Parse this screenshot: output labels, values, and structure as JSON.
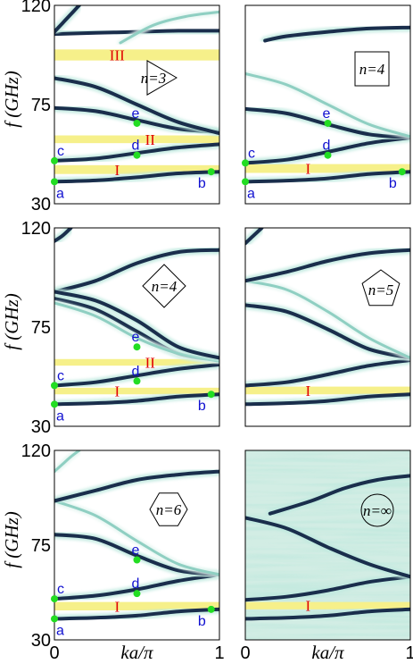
{
  "colors": {
    "band_dark": "#1a2e4c",
    "band_light": "#8fcfc2",
    "band_glow": "#bfe9df",
    "gap_fill": "#f6f08a",
    "gap_label": "#e00000",
    "point_fill": "#22dd22",
    "point_label": "#1010d0",
    "noise_bg": "#d2ede4"
  },
  "axes": {
    "ylabel": "f (GHz)",
    "xlabel": "ka/π",
    "yticks": [
      "30",
      "75",
      "120"
    ],
    "xticks": [
      "0",
      "1"
    ]
  },
  "chart_data": [
    {
      "type": "band-structure",
      "panel": "n=3",
      "shape": "triangle",
      "shape_label": "n=3",
      "xlim": [
        0,
        1
      ],
      "ylim": [
        30,
        120
      ],
      "bands": [
        {
          "tone": "dark",
          "x": [
            0,
            0.25,
            0.5,
            0.75,
            1
          ],
          "y": [
            40,
            40.6,
            42,
            43.8,
            44.5
          ]
        },
        {
          "tone": "dark",
          "x": [
            0,
            0.25,
            0.5,
            0.75,
            1
          ],
          "y": [
            49.5,
            50.5,
            53,
            55.5,
            57
          ]
        },
        {
          "tone": "dark",
          "x": [
            0,
            0.25,
            0.5,
            0.75,
            1
          ],
          "y": [
            73.5,
            72,
            68,
            64,
            62.5
          ]
        },
        {
          "tone": "dark",
          "x": [
            0,
            0.25,
            0.5,
            0.75,
            1
          ],
          "y": [
            87,
            83,
            75,
            67,
            62
          ]
        },
        {
          "tone": "dark",
          "x": [
            0,
            0.25,
            0.5,
            0.75,
            1
          ],
          "y": [
            107,
            107.5,
            108,
            108.5,
            108.5
          ]
        },
        {
          "tone": "dark",
          "x": [
            0,
            0.05,
            0.1,
            0.15
          ],
          "y": [
            108,
            112,
            116,
            120
          ]
        },
        {
          "tone": "light",
          "x": [
            0.4,
            0.6,
            0.8,
            1
          ],
          "y": [
            103,
            111,
            115,
            117
          ]
        }
      ],
      "gaps": [
        {
          "label": "I",
          "range": [
            43.5,
            47.5
          ]
        },
        {
          "label": "II",
          "range": [
            57.5,
            61
          ]
        },
        {
          "label": "III",
          "range": [
            95,
            100
          ]
        }
      ],
      "points": [
        {
          "label": "a",
          "x": 0,
          "y": 40
        },
        {
          "label": "b",
          "x": 0.95,
          "y": 44.5
        },
        {
          "label": "c",
          "x": 0,
          "y": 49.5
        },
        {
          "label": "d",
          "x": 0.5,
          "y": 52
        },
        {
          "label": "e",
          "x": 0.5,
          "y": 66.5
        }
      ]
    },
    {
      "type": "band-structure",
      "panel": "n=4 (square)",
      "shape": "square",
      "shape_label": "n=4",
      "xlim": [
        0,
        1
      ],
      "ylim": [
        30,
        120
      ],
      "bands": [
        {
          "tone": "dark",
          "x": [
            0,
            0.25,
            0.5,
            0.75,
            1
          ],
          "y": [
            40,
            40.5,
            41.5,
            43.5,
            44.5
          ]
        },
        {
          "tone": "dark",
          "x": [
            0,
            0.25,
            0.5,
            0.75,
            1
          ],
          "y": [
            48.5,
            50,
            53.5,
            57.5,
            60
          ]
        },
        {
          "tone": "dark",
          "x": [
            0,
            0.25,
            0.5,
            0.75,
            1
          ],
          "y": [
            73,
            71,
            66,
            61.5,
            60
          ]
        },
        {
          "tone": "light",
          "x": [
            0,
            0.25,
            0.5,
            0.75,
            1
          ],
          "y": [
            89,
            84,
            75,
            66,
            60.5
          ]
        },
        {
          "tone": "dark",
          "x": [
            0.12,
            0.25,
            0.5,
            0.75,
            1
          ],
          "y": [
            104,
            106,
            108,
            109.5,
            110
          ]
        }
      ],
      "gaps": [
        {
          "label": "I",
          "range": [
            44,
            48
          ]
        }
      ],
      "points": [
        {
          "label": "a",
          "x": 0,
          "y": 40
        },
        {
          "label": "b",
          "x": 0.95,
          "y": 44.5
        },
        {
          "label": "c",
          "x": 0,
          "y": 48.5
        },
        {
          "label": "d",
          "x": 0.5,
          "y": 52
        },
        {
          "label": "e",
          "x": 0.5,
          "y": 66.5
        }
      ]
    },
    {
      "type": "band-structure",
      "panel": "n=4 (diamond)",
      "shape": "diamond",
      "shape_label": "n=4",
      "xlim": [
        0,
        1
      ],
      "ylim": [
        30,
        120
      ],
      "bands": [
        {
          "tone": "dark",
          "x": [
            0,
            0.25,
            0.5,
            0.75,
            1
          ],
          "y": [
            40,
            40.5,
            41.5,
            43.5,
            44.5
          ]
        },
        {
          "tone": "dark",
          "x": [
            0,
            0.25,
            0.5,
            0.75,
            1
          ],
          "y": [
            48.5,
            50,
            53,
            56,
            58
          ]
        },
        {
          "tone": "dark",
          "x": [
            0,
            0.25,
            0.5,
            0.75,
            1
          ],
          "y": [
            88,
            83,
            73,
            63,
            60
          ]
        },
        {
          "tone": "light",
          "x": [
            0,
            0.25,
            0.5,
            0.75,
            1
          ],
          "y": [
            86,
            80,
            70,
            63,
            59.5
          ]
        },
        {
          "tone": "dark",
          "x": [
            0,
            0.25,
            0.5,
            0.75,
            1
          ],
          "y": [
            91,
            96,
            104,
            109,
            110
          ]
        },
        {
          "tone": "dark",
          "x": [
            0,
            0.25,
            0.5,
            0.75,
            1
          ],
          "y": [
            91,
            87,
            78,
            66,
            61
          ]
        },
        {
          "tone": "dark",
          "x": [
            0,
            0.05,
            0.1
          ],
          "y": [
            114,
            116.5,
            120
          ]
        }
      ],
      "gaps": [
        {
          "label": "I",
          "range": [
            44.5,
            47.5
          ]
        },
        {
          "label": "II",
          "range": [
            57.5,
            60.5
          ]
        }
      ],
      "points": [
        {
          "label": "a",
          "x": 0,
          "y": 40
        },
        {
          "label": "b",
          "x": 0.95,
          "y": 44.5
        },
        {
          "label": "c",
          "x": 0,
          "y": 48.5
        },
        {
          "label": "d",
          "x": 0.5,
          "y": 50.5
        },
        {
          "label": "e",
          "x": 0.5,
          "y": 66
        }
      ]
    },
    {
      "type": "band-structure",
      "panel": "n=5",
      "shape": "pentagon",
      "shape_label": "n=5",
      "xlim": [
        0,
        1
      ],
      "ylim": [
        30,
        120
      ],
      "bands": [
        {
          "tone": "dark",
          "x": [
            0,
            0.25,
            0.5,
            0.75,
            1
          ],
          "y": [
            40,
            40.5,
            41.5,
            43.5,
            44.5
          ]
        },
        {
          "tone": "dark",
          "x": [
            0,
            0.25,
            0.5,
            0.75,
            1
          ],
          "y": [
            48.5,
            50,
            53.5,
            57.5,
            60
          ]
        },
        {
          "tone": "dark",
          "x": [
            0,
            0.25,
            0.5,
            0.75,
            1
          ],
          "y": [
            85,
            82,
            74,
            65,
            61
          ]
        },
        {
          "tone": "light",
          "x": [
            0,
            0.25,
            0.5,
            0.75,
            1
          ],
          "y": [
            96,
            92,
            82,
            70,
            61
          ]
        },
        {
          "tone": "dark",
          "x": [
            0,
            0.25,
            0.5,
            0.75,
            1
          ],
          "y": [
            96,
            100,
            105,
            108.5,
            110
          ]
        },
        {
          "tone": "dark",
          "x": [
            0,
            0.05,
            0.1
          ],
          "y": [
            113,
            116.5,
            120
          ]
        }
      ],
      "gaps": [
        {
          "label": "I",
          "range": [
            44.5,
            48
          ]
        }
      ],
      "points": []
    },
    {
      "type": "band-structure",
      "panel": "n=6",
      "shape": "hexagon",
      "shape_label": "n=6",
      "xlim": [
        0,
        1
      ],
      "ylim": [
        30,
        120
      ],
      "bands": [
        {
          "tone": "dark",
          "x": [
            0,
            0.25,
            0.5,
            0.75,
            1
          ],
          "y": [
            40,
            40.5,
            41.5,
            43.5,
            44.5
          ]
        },
        {
          "tone": "dark",
          "x": [
            0,
            0.25,
            0.5,
            0.75,
            1
          ],
          "y": [
            49.5,
            51,
            54,
            58,
            61
          ]
        },
        {
          "tone": "dark",
          "x": [
            0,
            0.25,
            0.5,
            0.75,
            1
          ],
          "y": [
            80,
            78,
            70,
            63,
            61
          ]
        },
        {
          "tone": "light",
          "x": [
            0,
            0.25,
            0.5,
            0.75,
            1
          ],
          "y": [
            96,
            89,
            77,
            66,
            61
          ]
        },
        {
          "tone": "dark",
          "x": [
            0,
            0.25,
            0.5,
            0.75,
            1
          ],
          "y": [
            96,
            101,
            106,
            108.5,
            110
          ]
        },
        {
          "tone": "light",
          "x": [
            0,
            0.05,
            0.1,
            0.15
          ],
          "y": [
            110,
            113.5,
            117,
            120
          ]
        }
      ],
      "gaps": [
        {
          "label": "I",
          "range": [
            44,
            48
          ]
        }
      ],
      "points": [
        {
          "label": "a",
          "x": 0,
          "y": 40
        },
        {
          "label": "b",
          "x": 0.95,
          "y": 44.5
        },
        {
          "label": "c",
          "x": 0,
          "y": 49.5
        },
        {
          "label": "d",
          "x": 0.5,
          "y": 52
        },
        {
          "label": "e",
          "x": 0.5,
          "y": 68
        }
      ]
    },
    {
      "type": "band-structure",
      "panel": "n=∞",
      "shape": "circle",
      "shape_label": "n=∞",
      "background": "noisy",
      "xlim": [
        0,
        1
      ],
      "ylim": [
        30,
        120
      ],
      "bands": [
        {
          "tone": "dark",
          "x": [
            0,
            0.25,
            0.5,
            0.75,
            1
          ],
          "y": [
            40,
            40.5,
            41.5,
            43.5,
            44.5
          ]
        },
        {
          "tone": "dark",
          "x": [
            0,
            0.25,
            0.5,
            0.75,
            1
          ],
          "y": [
            49,
            50.5,
            53.5,
            57.5,
            60
          ]
        },
        {
          "tone": "dark",
          "x": [
            0,
            0.25,
            0.5,
            0.75,
            1
          ],
          "y": [
            88,
            83,
            74,
            66,
            60
          ]
        },
        {
          "tone": "dark",
          "x": [
            0.15,
            0.4,
            0.6,
            0.8,
            1
          ],
          "y": [
            90,
            96,
            102,
            106,
            108
          ]
        }
      ],
      "gaps": [
        {
          "label": "I",
          "range": [
            44.5,
            48
          ]
        }
      ],
      "points": []
    }
  ]
}
